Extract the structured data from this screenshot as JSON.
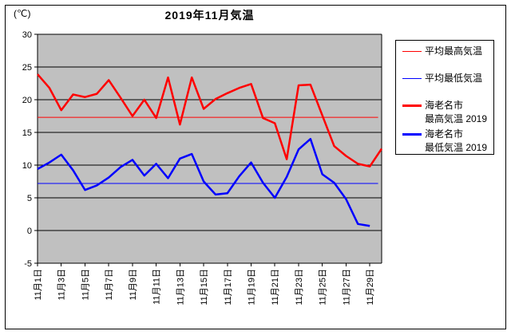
{
  "window": {
    "background": "#FFFFFF",
    "border_color": "#000000"
  },
  "chart_data": {
    "type": "line",
    "title": "2019年11月気温",
    "unit_label": "(℃)",
    "plot_bg_color": "#C0C0C0",
    "grid": "horizontal",
    "legend_position": "right",
    "ylim": [
      -5,
      30
    ],
    "y_ticks": [
      30,
      25,
      20,
      15,
      10,
      5,
      0,
      -5
    ],
    "x_tick_labels": [
      "11月1日",
      "11月3日",
      "11月5日",
      "11月7日",
      "11月9日",
      "11月11日",
      "11月13日",
      "11月15日",
      "11月17日",
      "11月19日",
      "11月21日",
      "11月23日",
      "11月25日",
      "11月27日",
      "11月29日"
    ],
    "x_days_total": 30,
    "series": [
      {
        "key": "avg-max",
        "name": "平均最高気温",
        "legend_lines": [
          "平均最高気温"
        ],
        "color": "#FF0000",
        "stroke_width": 1,
        "style": "flat-reference",
        "value": 17.3
      },
      {
        "key": "avg-min",
        "name": "平均最低気温",
        "legend_lines": [
          "平均最低気温"
        ],
        "color": "#0000FF",
        "stroke_width": 1,
        "style": "flat-reference",
        "value": 7.2
      },
      {
        "key": "ebina-max-2019",
        "name": "海老名市 最高気温 2019",
        "legend_lines": [
          "海老名市",
          "最高気温 2019"
        ],
        "color": "#FF0000",
        "stroke_width": 2.5,
        "style": "data",
        "start_day": 1,
        "values": [
          23.9,
          21.8,
          18.4,
          20.8,
          20.4,
          20.9,
          23.0,
          20.3,
          17.5,
          20.0,
          17.2,
          23.4,
          16.2,
          23.4,
          18.6,
          20.1,
          21.0,
          21.8,
          22.4,
          17.2,
          16.4,
          10.9,
          22.2,
          22.3,
          17.6,
          12.9,
          11.4,
          10.2,
          9.8,
          12.5
        ]
      },
      {
        "key": "ebina-min-2019",
        "name": "海老名市 最低気温 2019",
        "legend_lines": [
          "海老名市",
          "最低気温 2019"
        ],
        "color": "#0000FF",
        "stroke_width": 2.5,
        "style": "data",
        "start_day": 1,
        "values": [
          9.4,
          10.4,
          11.6,
          9.2,
          6.2,
          6.9,
          8.1,
          9.7,
          10.8,
          8.4,
          10.2,
          8.0,
          11.0,
          11.7,
          7.5,
          5.5,
          5.7,
          8.3,
          10.4,
          7.3,
          5.0,
          8.2,
          12.4,
          14.0,
          8.6,
          7.3,
          4.8,
          1.0,
          0.7
        ]
      }
    ]
  }
}
